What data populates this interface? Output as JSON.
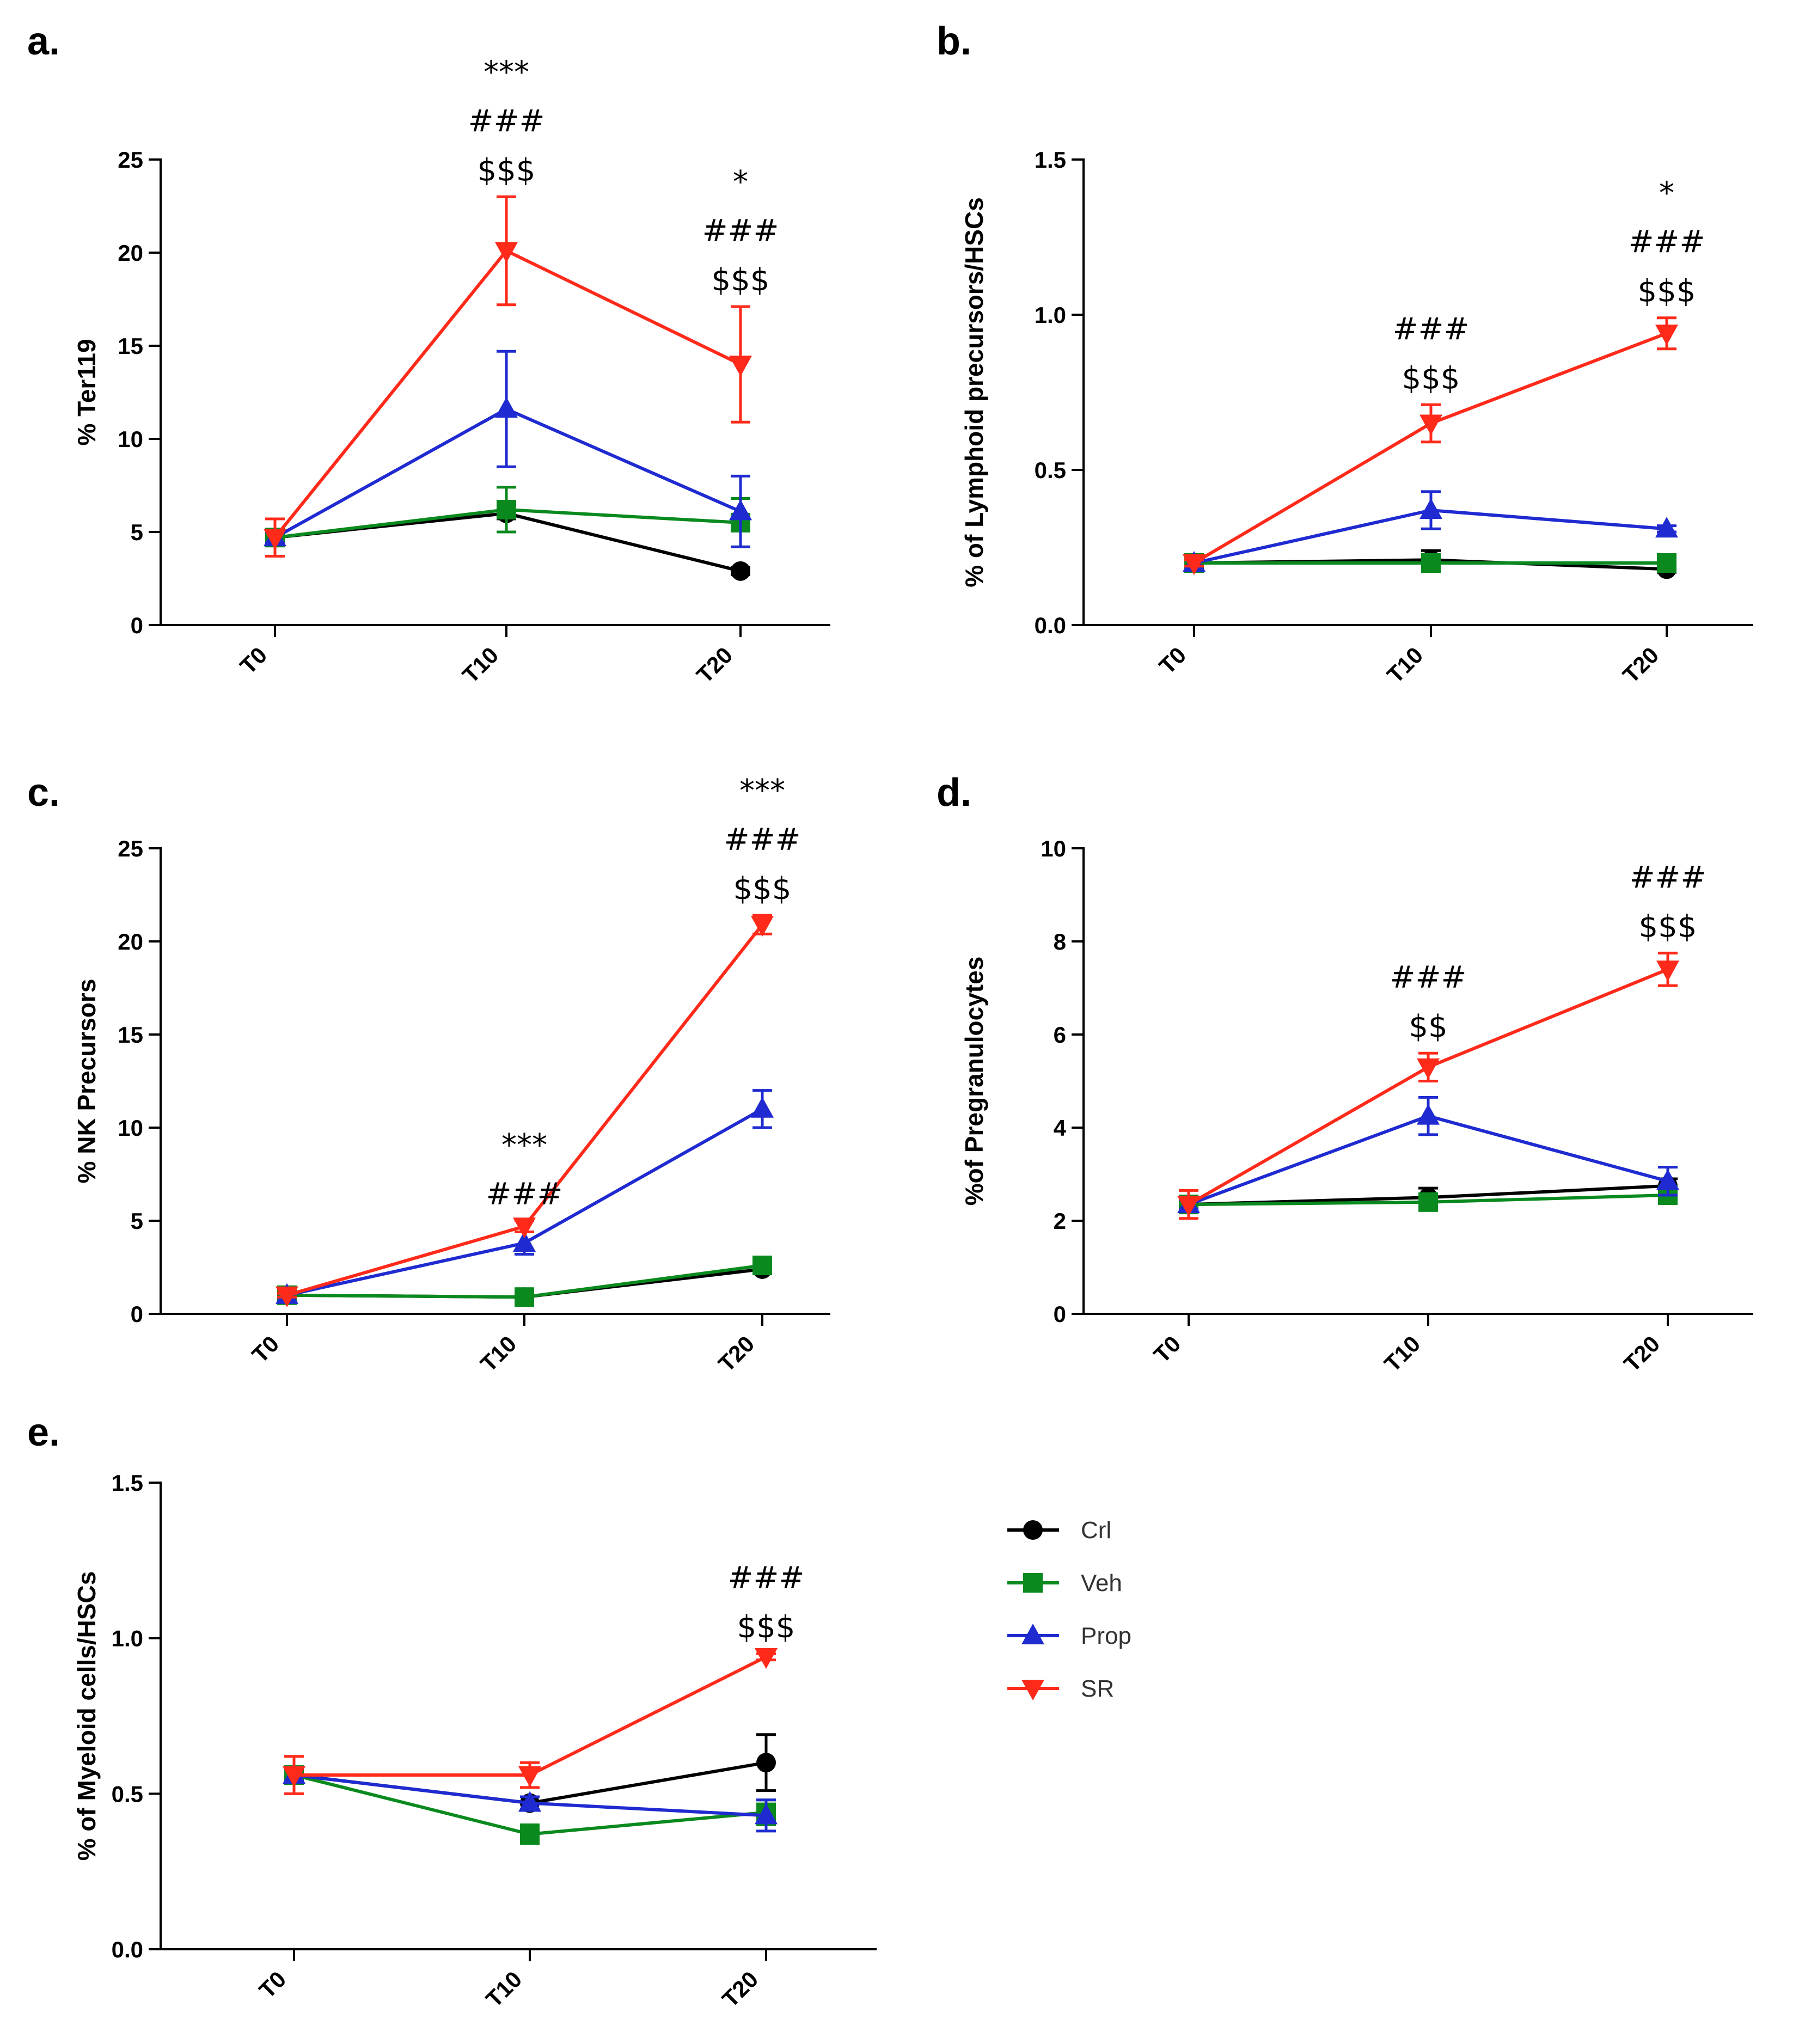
{
  "colors": {
    "Crl": "#000000",
    "Veh": "#0a8a1e",
    "Prop": "#1f2bd0",
    "SR": "#ff2a1a"
  },
  "legend": [
    {
      "name": "Crl",
      "marker": "circle"
    },
    {
      "name": "Veh",
      "marker": "square"
    },
    {
      "name": "Prop",
      "marker": "triangle-up"
    },
    {
      "name": "SR",
      "marker": "triangle-down"
    }
  ],
  "chart_data": [
    {
      "panel": "a.",
      "type": "line",
      "categories": [
        "T0",
        "T10",
        "T20"
      ],
      "ylabel": "% Ter119",
      "ylim": [
        0,
        25
      ],
      "yticks": [
        "0",
        "5",
        "10",
        "15",
        "20",
        "25"
      ],
      "series": [
        {
          "name": "Crl",
          "values": [
            4.7,
            6.0,
            2.9
          ],
          "errors": [
            0.3,
            0.3,
            0.2
          ]
        },
        {
          "name": "Veh",
          "values": [
            4.7,
            6.2,
            5.5
          ],
          "errors": [
            0.3,
            1.2,
            1.3
          ]
        },
        {
          "name": "Prop",
          "values": [
            4.7,
            11.6,
            6.1
          ],
          "errors": [
            0.3,
            3.1,
            1.9
          ]
        },
        {
          "name": "SR",
          "values": [
            4.7,
            20.1,
            14.0
          ],
          "errors": [
            1.0,
            2.9,
            3.1
          ]
        }
      ],
      "annotations": [
        {
          "category": "T10",
          "lines": [
            "***",
            "###",
            "$$$"
          ]
        },
        {
          "category": "T20",
          "lines": [
            "*",
            "###",
            "$$$"
          ]
        }
      ]
    },
    {
      "panel": "b.",
      "type": "line",
      "categories": [
        "T0",
        "T10",
        "T20"
      ],
      "ylabel": "% of Lymphoid precursors/HSCs",
      "ylim": [
        0,
        1.5
      ],
      "yticks": [
        "0.0",
        "0.5",
        "1.0",
        "1.5"
      ],
      "series": [
        {
          "name": "Crl",
          "values": [
            0.2,
            0.21,
            0.18
          ],
          "errors": [
            0.01,
            0.03,
            0.01
          ]
        },
        {
          "name": "Veh",
          "values": [
            0.2,
            0.2,
            0.2
          ],
          "errors": [
            0.01,
            0.02,
            0.02
          ]
        },
        {
          "name": "Prop",
          "values": [
            0.2,
            0.37,
            0.31
          ],
          "errors": [
            0.01,
            0.06,
            0.01
          ]
        },
        {
          "name": "SR",
          "values": [
            0.2,
            0.65,
            0.94
          ],
          "errors": [
            0.01,
            0.06,
            0.05
          ]
        }
      ],
      "annotations": [
        {
          "category": "T10",
          "lines": [
            "###",
            "$$$"
          ]
        },
        {
          "category": "T20",
          "lines": [
            "*",
            "###",
            "$$$"
          ]
        }
      ]
    },
    {
      "panel": "c.",
      "type": "line",
      "categories": [
        "T0",
        "T10",
        "T20"
      ],
      "ylabel": "% NK Precursors",
      "ylim": [
        0,
        25
      ],
      "yticks": [
        "0",
        "5",
        "10",
        "15",
        "20",
        "25"
      ],
      "series": [
        {
          "name": "Crl",
          "values": [
            1.0,
            0.9,
            2.4
          ],
          "errors": [
            0.1,
            0.1,
            0.2
          ]
        },
        {
          "name": "Veh",
          "values": [
            1.0,
            0.9,
            2.6
          ],
          "errors": [
            0.1,
            0.1,
            0.2
          ]
        },
        {
          "name": "Prop",
          "values": [
            1.0,
            3.8,
            11.0
          ],
          "errors": [
            0.1,
            0.6,
            1.0
          ]
        },
        {
          "name": "SR",
          "values": [
            1.0,
            4.7,
            20.9
          ],
          "errors": [
            0.1,
            0.3,
            0.5
          ]
        }
      ],
      "annotations": [
        {
          "category": "T10",
          "lines": [
            "***",
            "###"
          ]
        },
        {
          "category": "T20",
          "lines": [
            "***",
            "###",
            "$$$"
          ]
        }
      ]
    },
    {
      "panel": "d.",
      "type": "line",
      "categories": [
        "T0",
        "T10",
        "T20"
      ],
      "ylabel": "%of Pregranulocytes",
      "ylim": [
        0,
        10
      ],
      "yticks": [
        "0",
        "2",
        "4",
        "6",
        "8",
        "10"
      ],
      "series": [
        {
          "name": "Crl",
          "values": [
            2.35,
            2.5,
            2.75
          ],
          "errors": [
            0.1,
            0.2,
            0.15
          ]
        },
        {
          "name": "Veh",
          "values": [
            2.35,
            2.4,
            2.55
          ],
          "errors": [
            0.1,
            0.1,
            0.1
          ]
        },
        {
          "name": "Prop",
          "values": [
            2.35,
            4.25,
            2.85
          ],
          "errors": [
            0.1,
            0.4,
            0.3
          ]
        },
        {
          "name": "SR",
          "values": [
            2.35,
            5.3,
            7.4
          ],
          "errors": [
            0.3,
            0.3,
            0.35
          ]
        }
      ],
      "annotations": [
        {
          "category": "T10",
          "lines": [
            "###",
            "$$"
          ]
        },
        {
          "category": "T20",
          "lines": [
            "###",
            "$$$"
          ]
        }
      ]
    },
    {
      "panel": "e.",
      "type": "line",
      "categories": [
        "T0",
        "T10",
        "T20"
      ],
      "ylabel": "% of Myeloid cells/HSCs",
      "ylim": [
        0,
        1.5
      ],
      "yticks": [
        "0.0",
        "0.5",
        "1.0",
        "1.5"
      ],
      "series": [
        {
          "name": "Crl",
          "values": [
            0.56,
            0.47,
            0.6
          ],
          "errors": [
            0.02,
            0.02,
            0.09
          ]
        },
        {
          "name": "Veh",
          "values": [
            0.56,
            0.37,
            0.44
          ],
          "errors": [
            0.02,
            0.03,
            0.04
          ]
        },
        {
          "name": "Prop",
          "values": [
            0.56,
            0.47,
            0.43
          ],
          "errors": [
            0.02,
            0.02,
            0.05
          ]
        },
        {
          "name": "SR",
          "values": [
            0.56,
            0.56,
            0.94
          ],
          "errors": [
            0.06,
            0.04,
            0.01
          ]
        }
      ],
      "annotations": [
        {
          "category": "T20",
          "lines": [
            "###",
            "$$$"
          ]
        }
      ]
    }
  ]
}
